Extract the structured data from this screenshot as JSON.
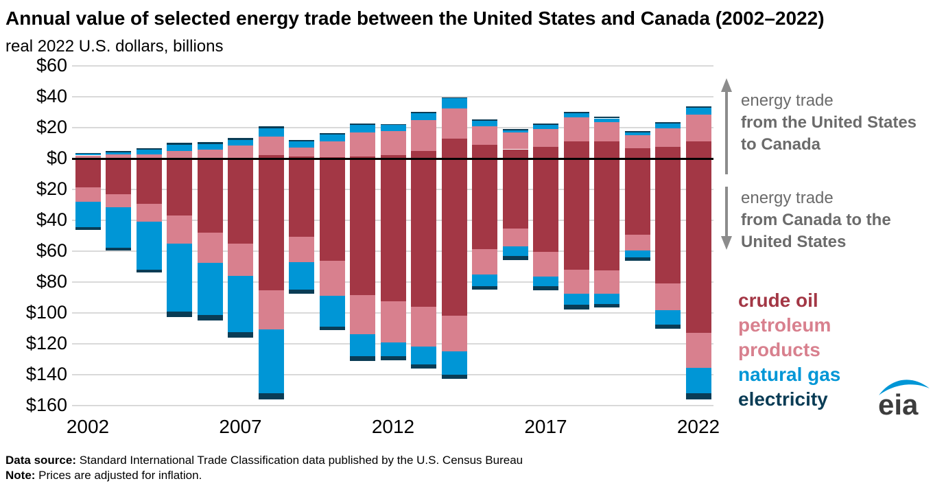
{
  "page": {
    "title": "Annual value of selected energy trade between the United States and Canada (2002–2022)",
    "subtitle": "real 2022 U.S. dollars, billions"
  },
  "chart_data": {
    "type": "bar",
    "stacked": true,
    "orientation": "diverging-vertical",
    "title": "Annual value of selected energy trade between the United States and Canada (2002–2022)",
    "subtitle": "real 2022 U.S. dollars, billions",
    "unit": "billion real 2022 U.S. dollars",
    "years": [
      2002,
      2003,
      2004,
      2005,
      2006,
      2007,
      2008,
      2009,
      2010,
      2011,
      2012,
      2013,
      2014,
      2015,
      2016,
      2017,
      2018,
      2019,
      2020,
      2021,
      2022
    ],
    "x_tick_years": [
      2002,
      2007,
      2012,
      2017,
      2022
    ],
    "x_tick_labels": [
      "2002",
      "2007",
      "2012",
      "2017",
      "2022"
    ],
    "y_axis": {
      "tick_values": [
        60,
        40,
        20,
        0,
        -20,
        -40,
        -60,
        -80,
        -100,
        -120,
        -140,
        -160
      ],
      "tick_labels": [
        "$60",
        "$40",
        "$20",
        "$0",
        "$20",
        "$40",
        "$60",
        "$80",
        "$100",
        "$120",
        "$140",
        "$160"
      ],
      "gridlines": true
    },
    "series_above_axis": {
      "direction_label": "energy trade from the United States to Canada",
      "series": [
        {
          "name": "crude oil",
          "color": "#a33745",
          "values": [
            0.2,
            0.3,
            0.3,
            0.4,
            0.4,
            0.5,
            2.2,
            1.3,
            1.1,
            1.4,
            2.3,
            5.0,
            13.1,
            9.0,
            6.0,
            7.5,
            11.2,
            11.2,
            6.6,
            7.5,
            11.2
          ]
        },
        {
          "name": "petroleum products",
          "color": "#d8808e",
          "values": [
            1.8,
            2.2,
            2.4,
            4.5,
            5.3,
            7.8,
            12.0,
            5.8,
            9.8,
            15.5,
            15.5,
            19.8,
            19.2,
            11.7,
            10.9,
            11.5,
            15.5,
            12.2,
            8.7,
            12.1,
            17.3
          ]
        },
        {
          "name": "natural gas",
          "color": "#0096d6",
          "values": [
            0.9,
            1.6,
            3.0,
            4.1,
            3.7,
            3.8,
            5.2,
            4.0,
            4.8,
            4.8,
            3.8,
            4.7,
            6.6,
            3.6,
            1.5,
            2.7,
            2.7,
            2.6,
            1.5,
            2.9,
            4.2
          ]
        },
        {
          "name": "electricity",
          "color": "#0a3c55",
          "values": [
            0.6,
            0.9,
            0.9,
            1.2,
            1.1,
            1.2,
            1.3,
            0.8,
            0.9,
            0.9,
            0.8,
            0.6,
            0.7,
            0.9,
            0.8,
            0.9,
            1.0,
            0.9,
            0.8,
            1.1,
            1.1
          ]
        }
      ]
    },
    "series_below_axis": {
      "direction_label": "energy trade from Canada to the United States",
      "note": "values are magnitudes plotted below the zero line",
      "series": [
        {
          "name": "crude oil",
          "color": "#a33745",
          "values": [
            18.7,
            22.9,
            29.5,
            36.7,
            47.9,
            55.1,
            85.5,
            50.5,
            66.0,
            88.4,
            92.4,
            95.8,
            101.8,
            58.6,
            45.5,
            60.4,
            71.9,
            72.4,
            49.3,
            80.9,
            113.0
          ]
        },
        {
          "name": "petroleum products",
          "color": "#d8808e",
          "values": [
            9.4,
            8.8,
            11.4,
            18.4,
            19.5,
            21.0,
            25.2,
            16.6,
            22.7,
            25.3,
            26.6,
            26.1,
            23.1,
            16.3,
            11.2,
            16.0,
            15.7,
            15.2,
            10.4,
            17.2,
            22.7
          ]
        },
        {
          "name": "natural gas",
          "color": "#0096d6",
          "values": [
            16.5,
            25.9,
            31.0,
            44.1,
            34.1,
            36.5,
            41.2,
            17.7,
            20.1,
            14.5,
            9.0,
            11.5,
            15.2,
            7.8,
            6.6,
            6.3,
            7.2,
            6.7,
            4.3,
            9.5,
            16.1
          ]
        },
        {
          "name": "electricity",
          "color": "#0a3c55",
          "values": [
            1.5,
            1.9,
            1.9,
            3.3,
            3.3,
            3.5,
            4.2,
            2.7,
            2.5,
            2.7,
            2.5,
            2.5,
            2.7,
            2.2,
            2.5,
            2.7,
            2.8,
            2.3,
            2.4,
            2.7,
            4.0
          ]
        }
      ]
    }
  },
  "annotations": {
    "up": {
      "light": "energy trade",
      "bold": "from the United States to Canada"
    },
    "down": {
      "light": "energy trade",
      "bold": "from Canada to the United States"
    }
  },
  "legend": [
    {
      "label": "crude oil",
      "color": "#a33745"
    },
    {
      "label": "petroleum products",
      "color": "#d8808e"
    },
    {
      "label": "natural gas",
      "color": "#0096d6"
    },
    {
      "label": "electricity",
      "color": "#0a3c55"
    }
  ],
  "footer": {
    "source_label": "Data source:",
    "source_text": " Standard International Trade Classification data published by the U.S. Census Bureau",
    "note_label": "Note:",
    "note_text": " Prices are adjusted for inflation."
  },
  "logo": {
    "text": "eia"
  },
  "colors": {
    "crude_oil": "#a33745",
    "petroleum_products": "#d8808e",
    "natural_gas": "#0096d6",
    "electricity": "#0a3c55",
    "gridline": "#d9d9d9",
    "zero_line": "#000000",
    "annotation_text": "#6b6b6b",
    "arrow": "#8c8c8c"
  }
}
